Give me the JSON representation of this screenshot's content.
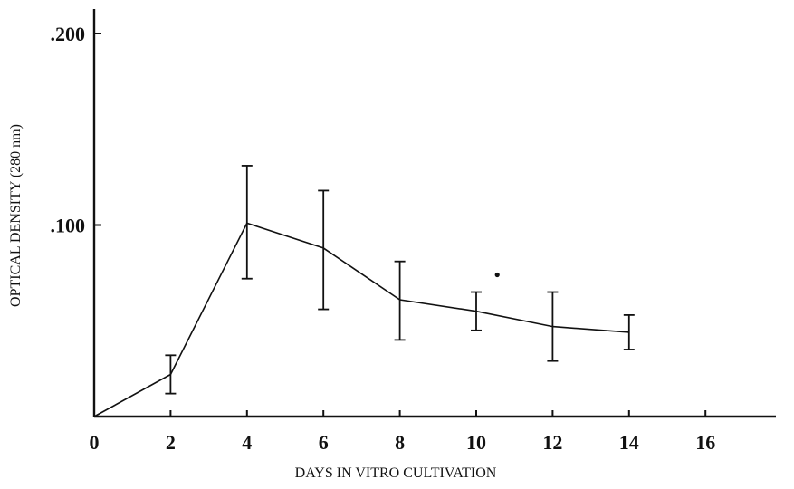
{
  "chart_data": {
    "type": "line",
    "title": "",
    "xlabel": "DAYS IN VITRO CULTIVATION",
    "ylabel": "OPTICAL DENSITY (280  nm)",
    "xlim": [
      0,
      18
    ],
    "ylim": [
      0,
      0.21
    ],
    "x_ticks": [
      0,
      2,
      4,
      6,
      8,
      10,
      12,
      14,
      16
    ],
    "x_tick_labels": [
      "0",
      "2",
      "4",
      "6",
      "8",
      "10",
      "12",
      "14",
      "16"
    ],
    "y_ticks": [
      0.1,
      0.2
    ],
    "y_tick_labels": [
      ".100",
      ".200"
    ],
    "grid": false,
    "legend": "none",
    "series": [
      {
        "x": [
          0,
          2,
          4,
          6,
          8,
          10,
          12,
          14
        ],
        "y": [
          0.0,
          0.022,
          0.101,
          0.088,
          0.061,
          0.055,
          0.047,
          0.044
        ],
        "error_low": [
          null,
          0.012,
          0.072,
          0.056,
          0.04,
          0.045,
          0.029,
          0.035
        ],
        "error_high": [
          null,
          0.032,
          0.131,
          0.118,
          0.081,
          0.065,
          0.065,
          0.053
        ]
      }
    ],
    "annotations": [
      {
        "type": "dot",
        "x": 10.55,
        "y": 0.074
      }
    ]
  }
}
